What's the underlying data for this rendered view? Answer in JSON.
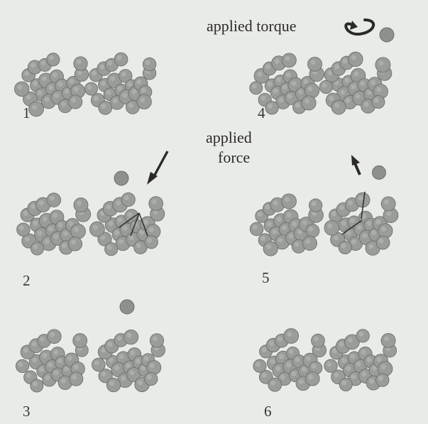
{
  "annotations": {
    "applied_torque": "applied torque",
    "applied_force_line1": "applied",
    "applied_force_line2": "force"
  },
  "panels": [
    {
      "label": "1"
    },
    {
      "label": "2"
    },
    {
      "label": "3"
    },
    {
      "label": "4"
    },
    {
      "label": "5"
    },
    {
      "label": "6"
    }
  ],
  "colors": {
    "background": "#e9ebe6",
    "atom": "#9a9c99",
    "arrow": "#2a2a2a"
  },
  "icons": {
    "torque": "curved-rotation-arrow-icon",
    "force": "diagonal-arrow-icon",
    "pull": "up-arrow-icon"
  }
}
